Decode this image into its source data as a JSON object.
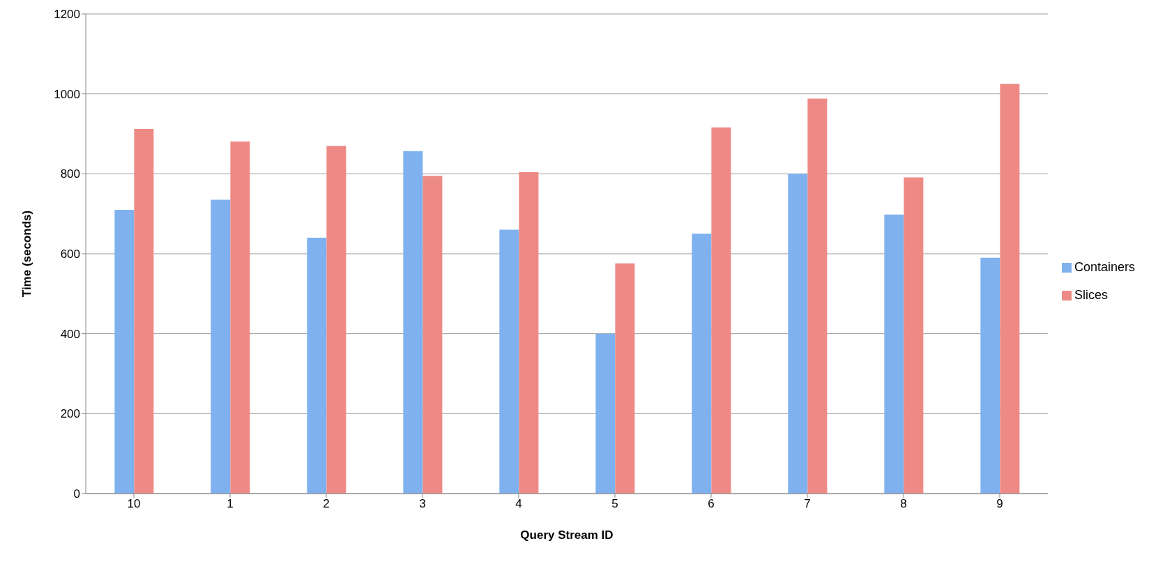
{
  "chart_data": {
    "type": "bar",
    "xlabel": "Query Stream ID",
    "ylabel": "Time (seconds)",
    "categories": [
      "10",
      "1",
      "2",
      "3",
      "4",
      "5",
      "6",
      "7",
      "8",
      "9"
    ],
    "series": [
      {
        "name": "Containers",
        "color": "#7eb1ee",
        "values": [
          710,
          735,
          640,
          857,
          660,
          400,
          650,
          800,
          698,
          590
        ]
      },
      {
        "name": "Slices",
        "color": "#ee8a85",
        "values": [
          912,
          881,
          870,
          795,
          804,
          576,
          916,
          988,
          791,
          1025
        ]
      }
    ],
    "ylim": [
      0,
      1200
    ],
    "yticks": [
      0,
      200,
      400,
      600,
      800,
      1000,
      1200
    ],
    "grid": "y",
    "legend": "right"
  }
}
